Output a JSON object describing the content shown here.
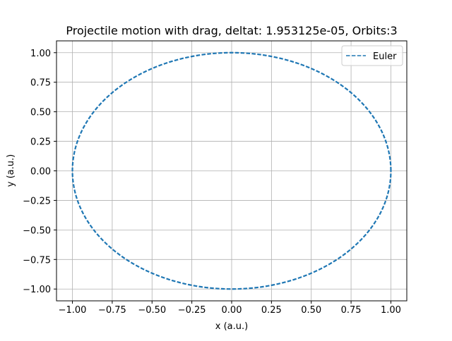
{
  "chart_data": {
    "type": "line",
    "title": "Projectile motion with drag, deltat: 1.953125e-05, Orbits:3",
    "xlabel": "x (a.u.)",
    "ylabel": "y (a.u.)",
    "xlim": [
      -1.1,
      1.1
    ],
    "ylim": [
      -1.1,
      1.1
    ],
    "x_ticks": [
      -1.0,
      -0.75,
      -0.5,
      -0.25,
      0.0,
      0.25,
      0.5,
      0.75,
      1.0
    ],
    "y_ticks": [
      -1.0,
      -0.75,
      -0.5,
      -0.25,
      0.0,
      0.25,
      0.5,
      0.75,
      1.0
    ],
    "x_tick_labels": [
      "−1.00",
      "−0.75",
      "−0.50",
      "−0.25",
      "0.00",
      "0.25",
      "0.50",
      "0.75",
      "1.00"
    ],
    "y_tick_labels": [
      "−1.00",
      "−0.75",
      "−0.50",
      "−0.25",
      "0.00",
      "0.25",
      "0.50",
      "0.75",
      "1.00"
    ],
    "grid": true,
    "legend_position": "top-right",
    "series": [
      {
        "name": "Euler",
        "style": "dashed",
        "color": "#1f77b4",
        "shape": "circle",
        "center": [
          0.0,
          0.0
        ],
        "radius": 1.0,
        "orbits": 3
      }
    ]
  }
}
